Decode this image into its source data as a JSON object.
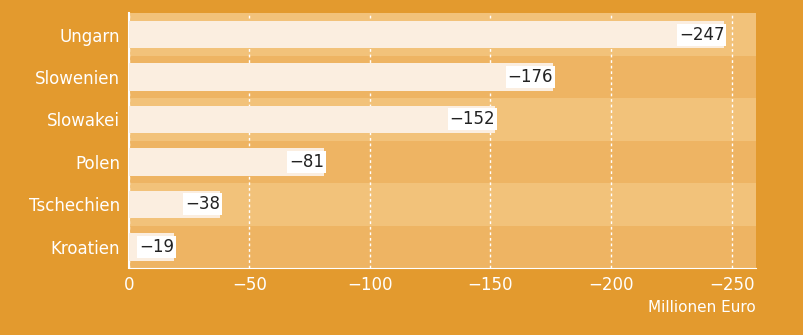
{
  "chart_data": {
    "type": "bar",
    "orientation": "horizontal",
    "categories": [
      "Ungarn",
      "Slowenien",
      "Slowakei",
      "Polen",
      "Tschechien",
      "Kroatien"
    ],
    "values": [
      -247,
      -176,
      -152,
      -81,
      -38,
      -19
    ],
    "value_labels": [
      "−247",
      "−176",
      "−152",
      "−81",
      "−38",
      "−19"
    ],
    "data_labels": true,
    "color": "#fbeee0",
    "xlabel": "Millionen Euro",
    "xlim": [
      0,
      -260
    ],
    "xticks": [
      0,
      {
        "value": -50,
        "label": "−50"
      },
      {
        "value": -100,
        "label": "−100"
      },
      {
        "value": -150,
        "label": "−150"
      },
      {
        "value": -200,
        "label": "−200"
      },
      {
        "value": -250,
        "label": "−250"
      }
    ],
    "grid": true
  }
}
